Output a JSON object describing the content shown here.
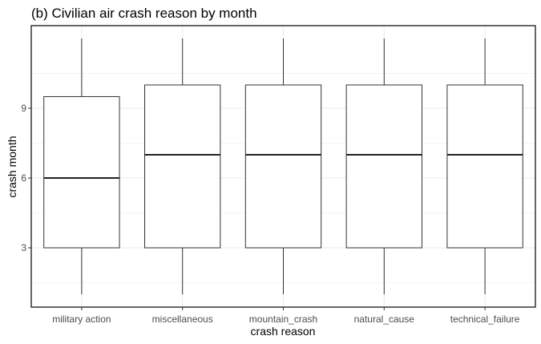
{
  "chart_data": {
    "type": "boxplot",
    "title": "(b) Civilian air crash reason by month",
    "xlabel": "crash reason",
    "ylabel": "crash month",
    "categories": [
      "military action",
      "miscellaneous",
      "mountain_crash",
      "natural_cause",
      "technical_failure"
    ],
    "boxes": [
      {
        "category": "military action",
        "min": 1,
        "q1": 3,
        "median": 6,
        "q3": 9.5,
        "max": 12
      },
      {
        "category": "miscellaneous",
        "min": 1,
        "q1": 3,
        "median": 7,
        "q3": 10,
        "max": 12
      },
      {
        "category": "mountain_crash",
        "min": 1,
        "q1": 3,
        "median": 7,
        "q3": 10,
        "max": 12
      },
      {
        "category": "natural_cause",
        "min": 1,
        "q1": 3,
        "median": 7,
        "q3": 10,
        "max": 12
      },
      {
        "category": "technical_failure",
        "min": 1,
        "q1": 3,
        "median": 7,
        "q3": 10,
        "max": 12
      }
    ],
    "yticks": [
      3,
      6,
      9
    ],
    "ylim": [
      0.45,
      12.55
    ],
    "grid": true,
    "grid_minor": [
      1.5,
      4.5,
      7.5,
      10.5
    ],
    "colors": {
      "box_fill": "#ffffff",
      "box_stroke": "#333333",
      "grid": "#ebebeb",
      "panel_border": "#000000"
    }
  }
}
